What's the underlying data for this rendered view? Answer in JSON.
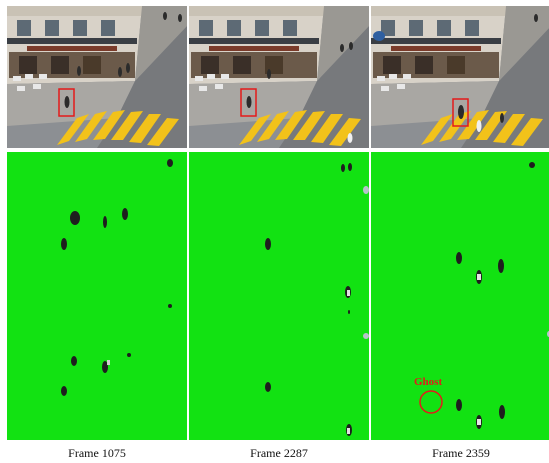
{
  "frames": [
    {
      "caption": "Frame 1075"
    },
    {
      "caption": "Frame 2287"
    },
    {
      "caption": "Frame 2359",
      "annotation": "Ghost"
    }
  ],
  "colors": {
    "mask_background": "#12e212",
    "highlight_box": "#e41a1a",
    "crosswalk": "#f2c21a"
  }
}
